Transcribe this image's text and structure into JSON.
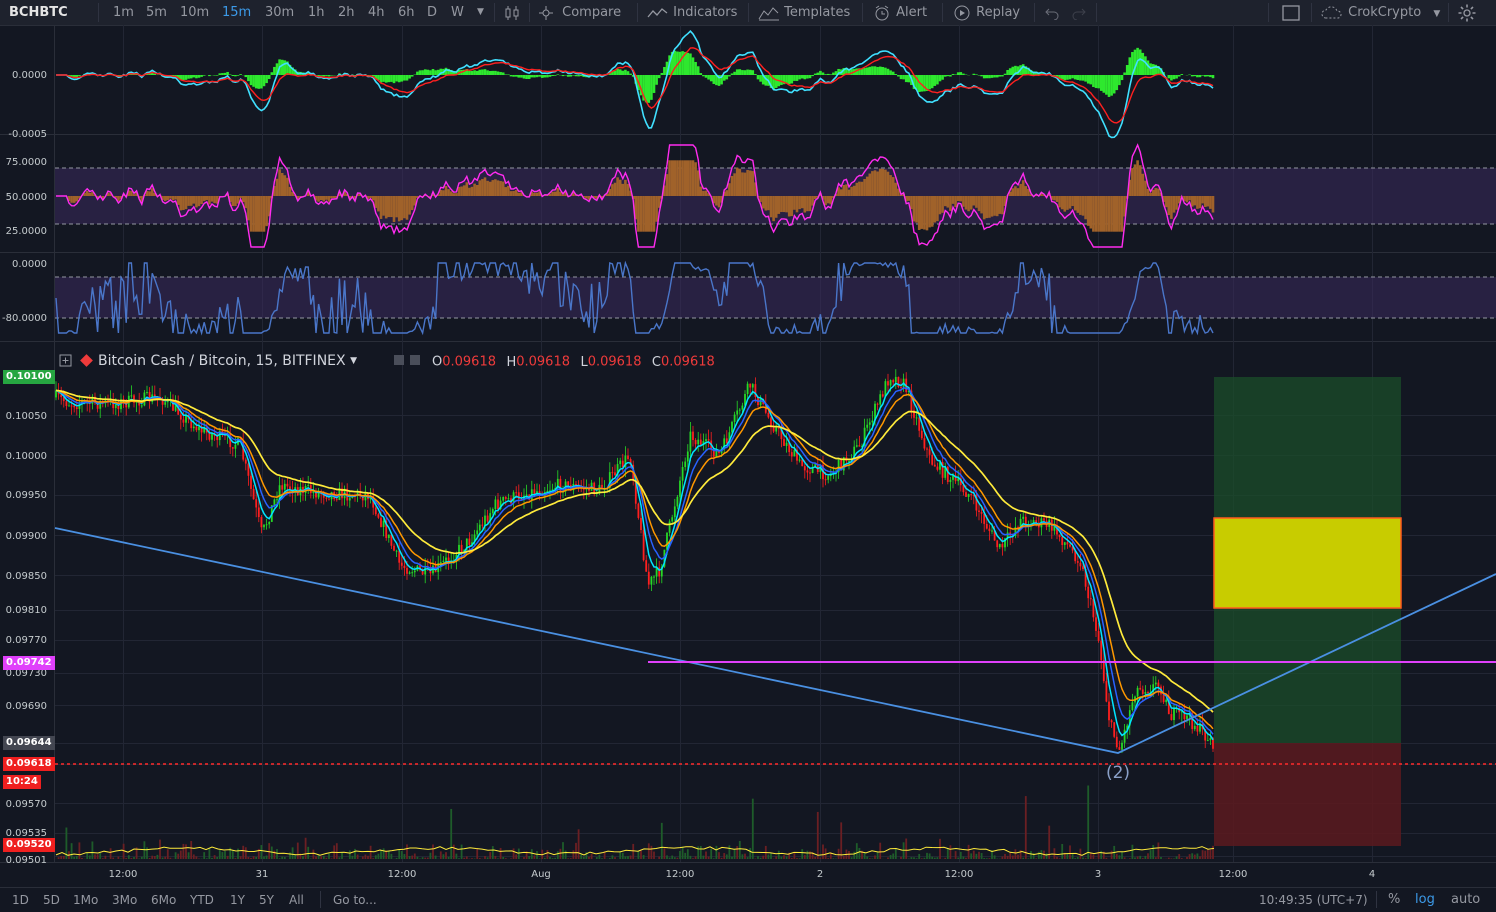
{
  "toolbar": {
    "symbol": "BCHBTC",
    "intervals": [
      "1m",
      "5m",
      "10m",
      "15m",
      "30m",
      "1h",
      "2h",
      "4h",
      "6h",
      "D",
      "W"
    ],
    "active_interval": "15m",
    "compare": "Compare",
    "indicators": "Indicators",
    "templates": "Templates",
    "alert": "Alert",
    "replay": "Replay",
    "account": "CrokCrypto"
  },
  "legend": {
    "title": "Bitcoin Cash / Bitcoin, 15, BITFINEX",
    "o_label": "O",
    "o": "0.09618",
    "h_label": "H",
    "h": "0.09618",
    "l_label": "L",
    "l": "0.09618",
    "c_label": "C",
    "c": "0.09618"
  },
  "macd_axis": [
    "0.0000",
    "-0.0005"
  ],
  "rsi_axis": [
    "75.0000",
    "50.0000",
    "25.0000"
  ],
  "willr_axis": [
    "0.0000",
    "-80.0000"
  ],
  "price_axis": [
    "0.10050",
    "0.10000",
    "0.09950",
    "0.09900",
    "0.09850",
    "0.09810",
    "0.09770",
    "0.09730",
    "0.09690",
    "0.09570",
    "0.09535",
    "0.09501"
  ],
  "price_tags": {
    "top": "0.10100",
    "magenta": "0.09742",
    "last_gray": "0.09644",
    "current": "0.09618",
    "countdown": "10:24",
    "bottom": "0.09520"
  },
  "time_axis": [
    "12:00",
    "31",
    "12:00",
    "Aug",
    "12:00",
    "2",
    "12:00",
    "3",
    "12:00",
    "4"
  ],
  "annotation": "(2)",
  "bottombar": {
    "ranges": [
      "1D",
      "5D",
      "1Mo",
      "3Mo",
      "6Mo",
      "YTD",
      "1Y",
      "5Y",
      "All"
    ],
    "goto": "Go to...",
    "clock": "10:49:35 (UTC+7)",
    "percent": "%",
    "log": "log",
    "auto": "auto"
  },
  "colors": {
    "background": "#131722",
    "bull": "#26d926",
    "bear": "#ff1f1f",
    "ema_fast": "#00e5ff",
    "ema_mid": "#2962ff",
    "ema_slow": "#ff9800",
    "ema_long": "#ffeb3b",
    "trendline": "#4a90e2",
    "support": "#e040fb",
    "profit_zone": "#1b4d2a",
    "loss_zone": "#5c1a1f",
    "target_box": "#c8cc00"
  },
  "chart_data": [
    {
      "type": "line",
      "panel": "MACD",
      "ylim": [
        -0.0006,
        0.0003
      ],
      "series": []
    },
    {
      "type": "line",
      "panel": "RSI",
      "ylim": [
        10,
        90
      ],
      "levels": [
        70,
        30
      ]
    },
    {
      "type": "line",
      "panel": "Williams %R",
      "ylim": [
        -100,
        0
      ],
      "levels": [
        -20,
        -80
      ]
    },
    {
      "type": "candlestick",
      "panel": "price",
      "x": [
        "Jul 30 12:00",
        "Jul 31",
        "Jul 31 12:00",
        "Aug 1",
        "Aug 1 12:00",
        "Aug 2",
        "Aug 2 12:00",
        "Aug 3",
        "Aug 3 12:00"
      ],
      "close": [
        0.1006,
        0.0996,
        0.099,
        0.0998,
        0.1002,
        0.0998,
        0.0999,
        0.0988,
        0.0964
      ],
      "last": 0.09618,
      "horizontal_line": 0.09742,
      "target_zone": [
        0.0981,
        0.0992
      ],
      "profit_zone": [
        0.09644,
        0.101
      ],
      "loss_zone": [
        0.0952,
        0.09644
      ],
      "log_scale": true
    }
  ]
}
